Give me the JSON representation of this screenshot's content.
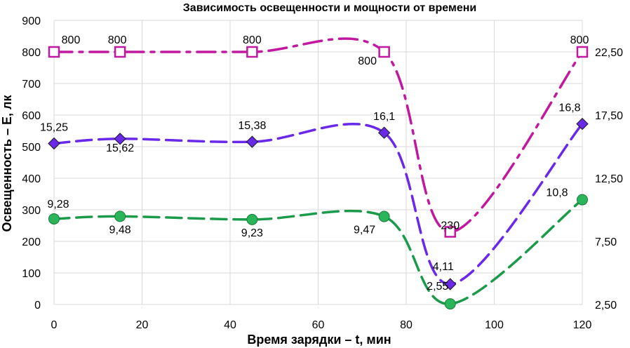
{
  "chart_data": {
    "type": "line",
    "title": "Зависимость освещенности и мощности от времени",
    "xlabel": "Время зарядки – t, мин",
    "ylabel": "Освещенность – E, лк",
    "xlim": [
      0,
      120
    ],
    "ylim": [
      0,
      900
    ],
    "y2lim": [
      2.5,
      25
    ],
    "x_ticks": [
      "0",
      "20",
      "40",
      "60",
      "80",
      "100",
      "120"
    ],
    "y_ticks": [
      "0",
      "100",
      "200",
      "300",
      "400",
      "500",
      "600",
      "700",
      "800",
      "900"
    ],
    "y2_ticks": [
      "2,50",
      "7,50",
      "12,50",
      "17,50",
      "22,50"
    ],
    "grid": true,
    "legend": "none",
    "series": [
      {
        "axis": "left",
        "color": "#c0189e",
        "marker": "square-open",
        "line": "dash-dot",
        "x": [
          0,
          15,
          45,
          75,
          90,
          120
        ],
        "values": [
          800,
          800,
          800,
          800,
          230,
          800
        ],
        "labels": [
          "800",
          "800",
          "800",
          "800",
          "230",
          "800"
        ]
      },
      {
        "axis": "right",
        "color": "#6a28e8",
        "marker": "diamond",
        "line": "dash",
        "x": [
          0,
          15,
          45,
          75,
          90,
          120
        ],
        "values": [
          15.25,
          15.62,
          15.38,
          16.1,
          4.11,
          16.8
        ],
        "labels": [
          "15,25",
          "15,62",
          "15,38",
          "16,1",
          "4,11",
          "16,8"
        ]
      },
      {
        "axis": "right",
        "color": "#1a9a4a",
        "marker": "circle",
        "line": "dash",
        "x": [
          0,
          15,
          45,
          75,
          90,
          120
        ],
        "values": [
          9.28,
          9.48,
          9.23,
          9.47,
          2.55,
          10.8
        ],
        "labels": [
          "9,28",
          "9,48",
          "9,23",
          "9,47",
          "2,55",
          "10,8"
        ]
      }
    ]
  }
}
